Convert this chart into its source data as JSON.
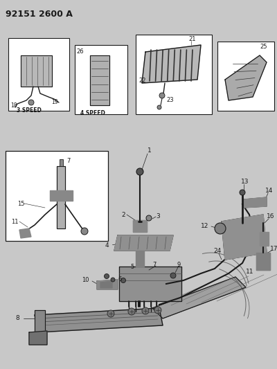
{
  "title": "92151 2600 A",
  "bg_color": "#c8c8c8",
  "line_color": "#1a1a1a",
  "white": "#ffffff",
  "fig_width": 4.0,
  "fig_height": 5.33,
  "dpi": 100
}
